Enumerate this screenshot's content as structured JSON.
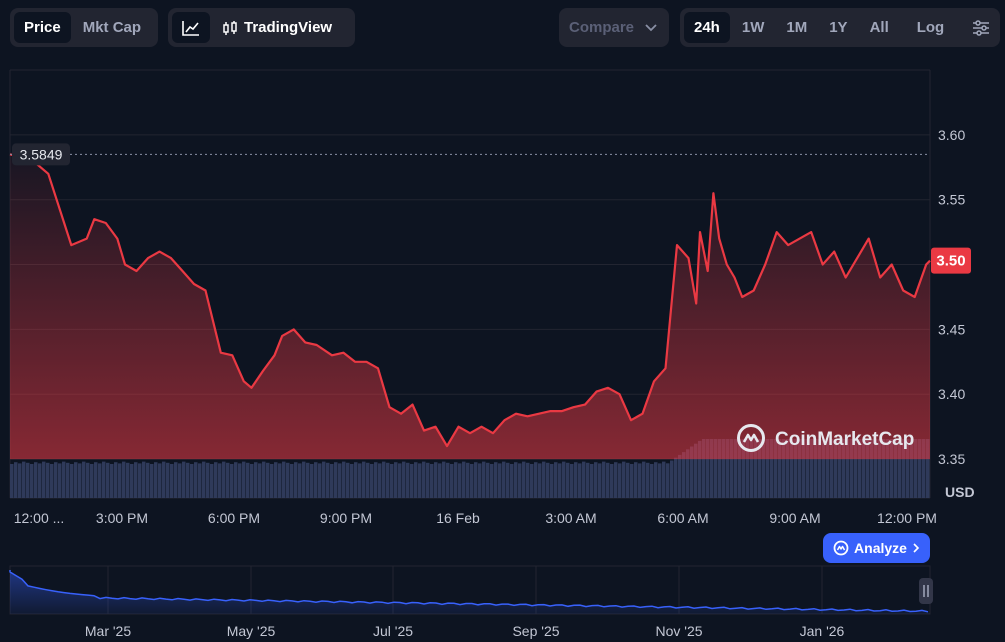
{
  "toolbar": {
    "view_tabs": [
      {
        "label": "Price",
        "active": true
      },
      {
        "label": "Mkt Cap",
        "active": false
      }
    ],
    "tradingview_label": "TradingView",
    "compare_label": "Compare",
    "ranges": [
      {
        "label": "24h",
        "active": true
      },
      {
        "label": "1W",
        "active": false
      },
      {
        "label": "1M",
        "active": false
      },
      {
        "label": "1Y",
        "active": false
      },
      {
        "label": "All",
        "active": false
      }
    ],
    "log_label": "Log"
  },
  "brand": {
    "watermark": "CoinMarketCap"
  },
  "analyze_label": "Analyze",
  "colors": {
    "line": "#ea3943",
    "volume": "#2f3a5a",
    "nav_line": "#3861fb",
    "accent": "#3861fb",
    "current_badge": "#ea3943"
  },
  "chart_data": {
    "type": "line",
    "unit": "USD",
    "y_ticks": [
      "3.60",
      "3.55",
      "3.50",
      "3.45",
      "3.40",
      "3.35"
    ],
    "ylim": [
      3.32,
      3.65
    ],
    "x_ticks": [
      "12:00 ...",
      "3:00 PM",
      "6:00 PM",
      "9:00 PM",
      "16 Feb",
      "3:00 AM",
      "6:00 AM",
      "9:00 AM",
      "12:00 PM"
    ],
    "open_price_label": "3.5849",
    "open_price": 3.5849,
    "current_price_label": "3.50",
    "current_price": 3.503,
    "grid": true,
    "series": [
      {
        "x_hours": [
          0,
          0.6,
          1.0,
          1.6,
          2.0,
          2.2,
          2.5,
          2.8,
          3.0,
          3.3,
          3.6,
          3.9,
          4.2,
          4.5,
          4.8,
          5.1,
          5.5,
          5.8,
          6.1,
          6.3,
          6.6,
          6.9,
          7.1,
          7.4,
          7.7,
          8.0,
          8.4,
          8.7,
          9.0,
          9.3,
          9.6,
          9.9,
          10.2,
          10.5,
          10.8,
          11.1,
          11.4,
          11.7,
          12.0,
          12.3,
          12.6,
          12.9,
          13.2,
          13.5,
          13.8,
          14.1,
          14.4,
          14.7,
          15.0,
          15.3,
          15.6,
          15.9,
          16.2,
          16.5,
          16.8,
          17.1,
          17.4,
          17.7,
          17.9,
          18.0,
          18.2,
          18.35,
          18.5,
          18.7,
          18.9,
          19.1,
          19.4,
          19.7,
          20.0,
          20.3,
          20.6,
          20.9,
          21.2,
          21.5,
          21.8,
          22.1,
          22.4,
          22.7,
          23.0,
          23.3,
          23.6,
          23.9,
          24.0
        ],
        "values": [
          3.585,
          3.58,
          3.57,
          3.515,
          3.52,
          3.535,
          3.532,
          3.52,
          3.5,
          3.495,
          3.505,
          3.51,
          3.505,
          3.495,
          3.485,
          3.48,
          3.432,
          3.43,
          3.41,
          3.405,
          3.418,
          3.43,
          3.445,
          3.45,
          3.44,
          3.438,
          3.43,
          3.432,
          3.425,
          3.425,
          3.42,
          3.39,
          3.385,
          3.392,
          3.372,
          3.375,
          3.36,
          3.375,
          3.37,
          3.375,
          3.37,
          3.38,
          3.385,
          3.383,
          3.385,
          3.387,
          3.387,
          3.39,
          3.392,
          3.402,
          3.405,
          3.4,
          3.38,
          3.385,
          3.41,
          3.42,
          3.515,
          3.505,
          3.47,
          3.525,
          3.495,
          3.555,
          3.52,
          3.5,
          3.49,
          3.475,
          3.48,
          3.5,
          3.525,
          3.515,
          3.52,
          3.525,
          3.5,
          3.51,
          3.49,
          3.505,
          3.52,
          3.49,
          3.5,
          3.48,
          3.475,
          3.5,
          3.503
        ]
      }
    ],
    "navigator": {
      "x_ticks": [
        "Mar '25",
        "May '25",
        "Jul '25",
        "Sep '25",
        "Nov '25",
        "Jan '26"
      ]
    }
  }
}
